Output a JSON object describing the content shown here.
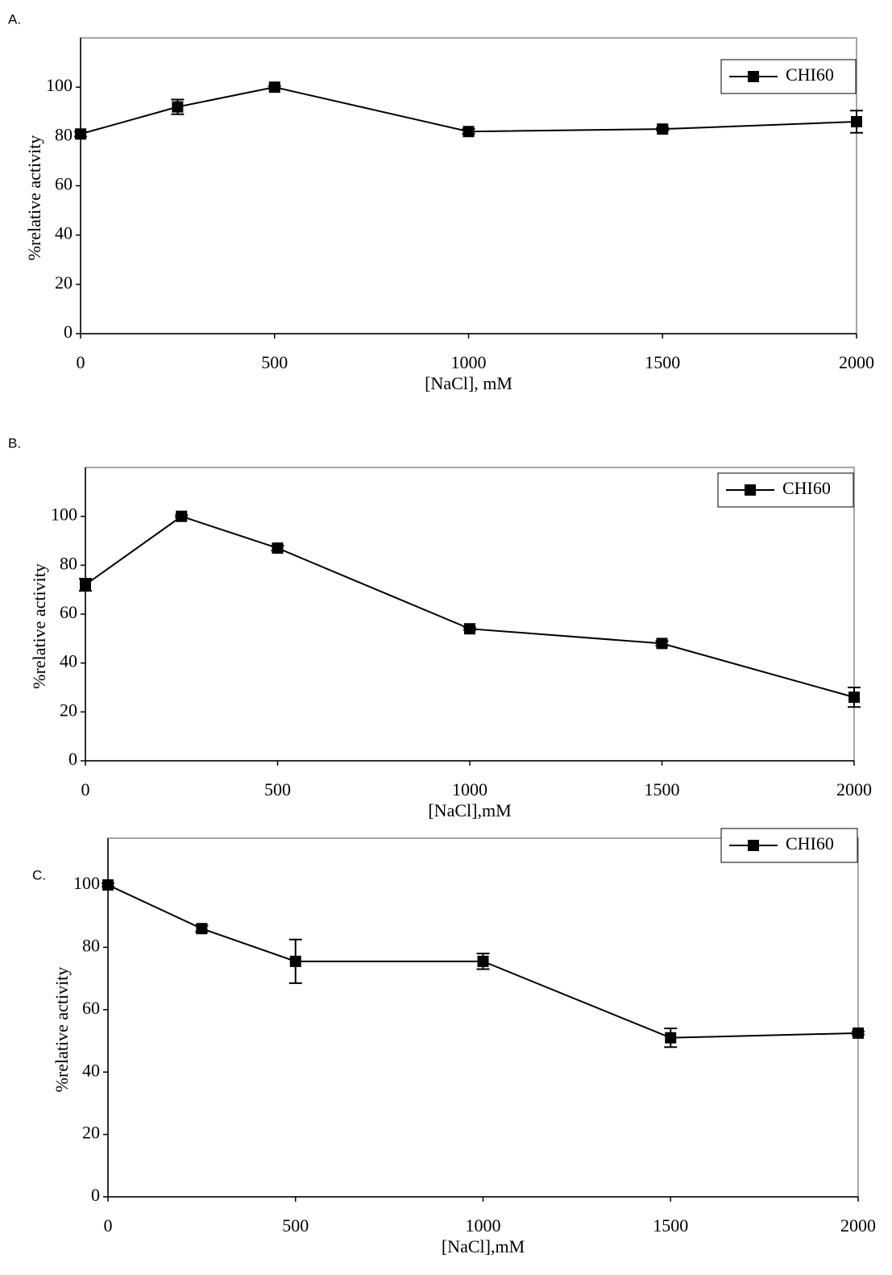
{
  "chart_data": [
    {
      "type": "line",
      "label": "A.",
      "xlabel": "[NaCl], mM",
      "ylabel": "%relative activity",
      "x": [
        0,
        250,
        500,
        1000,
        1500,
        2000
      ],
      "series": [
        {
          "name": "CHI60",
          "color": "#000000",
          "values": [
            81,
            92,
            100,
            82,
            83,
            86
          ],
          "errors": [
            1,
            3,
            0.5,
            1,
            0.5,
            4.5
          ]
        }
      ],
      "xlim": [
        0,
        2000
      ],
      "xticks": [
        0,
        500,
        1000,
        1500,
        2000
      ],
      "ylim": [
        0,
        120
      ],
      "yticks": [
        0,
        20,
        40,
        60,
        80,
        100
      ],
      "legend": "upper right"
    },
    {
      "type": "line",
      "label": "B.",
      "xlabel": "[NaCl],mM",
      "ylabel": "%relative activity",
      "x": [
        0,
        250,
        500,
        1000,
        1500,
        2000
      ],
      "series": [
        {
          "name": "CHI60",
          "color": "#000000",
          "values": [
            72,
            100,
            87,
            54,
            48,
            26
          ],
          "errors": [
            2.5,
            0.5,
            1,
            0.5,
            1,
            4
          ]
        }
      ],
      "xlim": [
        0,
        2000
      ],
      "xticks": [
        0,
        500,
        1000,
        1500,
        2000
      ],
      "ylim": [
        0,
        120
      ],
      "yticks": [
        0,
        20,
        40,
        60,
        80,
        100
      ],
      "legend": "upper right"
    },
    {
      "type": "line",
      "label": "C.",
      "xlabel": "[NaCl],mM",
      "ylabel": "%relative activity",
      "x": [
        0,
        250,
        500,
        1000,
        1500,
        2000
      ],
      "series": [
        {
          "name": "CHI60",
          "color": "#000000",
          "values": [
            100,
            86,
            75.5,
            75.5,
            51,
            52.5
          ],
          "errors": [
            0.5,
            1,
            7,
            2.5,
            3,
            0.5
          ]
        }
      ],
      "xlim": [
        0,
        2000
      ],
      "xticks": [
        0,
        500,
        1000,
        1500,
        2000
      ],
      "ylim": [
        0,
        115
      ],
      "yticks": [
        0,
        20,
        40,
        60,
        80,
        100
      ],
      "legend": "upper right"
    }
  ]
}
